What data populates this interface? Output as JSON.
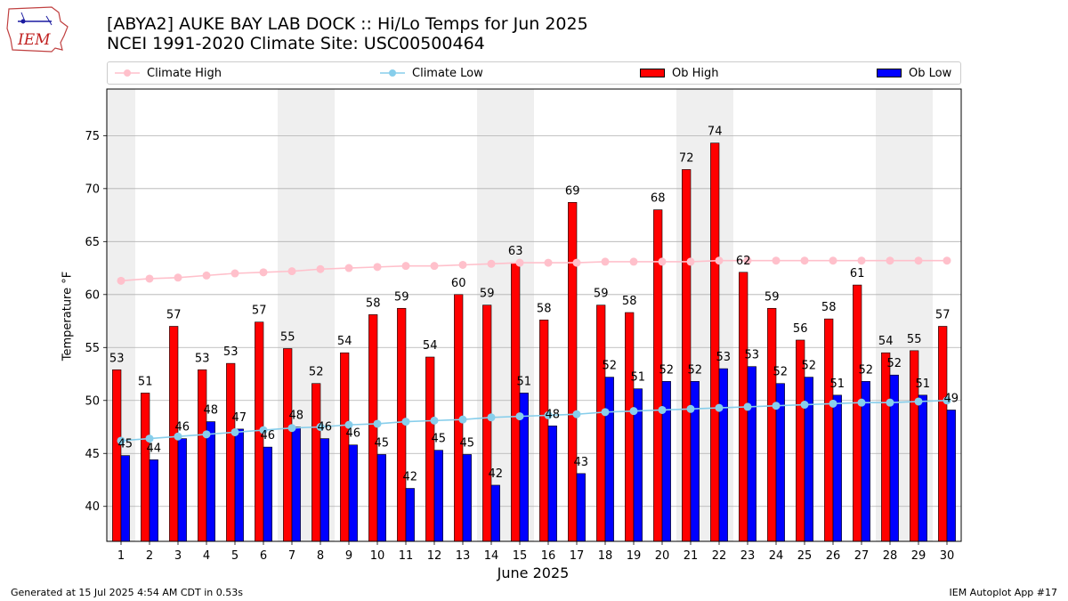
{
  "header": {
    "title_line1": "[ABYA2] AUKE BAY LAB DOCK :: Hi/Lo Temps for Jun 2025",
    "title_line2": "NCEI 1991-2020 Climate Site: USC00500464",
    "logo_text": "IEM"
  },
  "footer": {
    "generated": "Generated at 15 Jul 2025 4:54 AM CDT in 0.53s",
    "app": "IEM Autoplot App #17"
  },
  "colors": {
    "ob_high": "#ff0000",
    "ob_low": "#0000ff",
    "climate_high": "#ffc0cb",
    "climate_low": "#87ceeb",
    "weekend_shade": "#efefef",
    "grid": "#b0b0b0"
  },
  "chart_data": {
    "type": "bar",
    "xlabel": "June 2025",
    "ylabel": "Temperature °F",
    "ylim": [
      36.7,
      79.4
    ],
    "yticks": [
      40,
      45,
      50,
      55,
      60,
      65,
      70,
      75
    ],
    "grid": "horizontal",
    "legend_position": "top",
    "categories": [
      "1",
      "2",
      "3",
      "4",
      "5",
      "6",
      "7",
      "8",
      "9",
      "10",
      "11",
      "12",
      "13",
      "14",
      "15",
      "16",
      "17",
      "18",
      "19",
      "20",
      "21",
      "22",
      "23",
      "24",
      "25",
      "26",
      "27",
      "28",
      "29",
      "30"
    ],
    "shaded_days": [
      1,
      7,
      8,
      14,
      15,
      21,
      22,
      28,
      29
    ],
    "series": [
      {
        "name": "Climate High",
        "kind": "line",
        "values": [
          61.3,
          61.5,
          61.6,
          61.8,
          62.0,
          62.1,
          62.2,
          62.4,
          62.5,
          62.6,
          62.7,
          62.7,
          62.8,
          62.9,
          63.0,
          63.0,
          63.0,
          63.1,
          63.1,
          63.1,
          63.1,
          63.2,
          63.2,
          63.2,
          63.2,
          63.2,
          63.2,
          63.2,
          63.2,
          63.2
        ]
      },
      {
        "name": "Climate Low",
        "kind": "line",
        "values": [
          46.2,
          46.4,
          46.6,
          46.8,
          47.0,
          47.2,
          47.4,
          47.5,
          47.7,
          47.8,
          48.0,
          48.1,
          48.2,
          48.4,
          48.5,
          48.6,
          48.7,
          48.9,
          49.0,
          49.1,
          49.2,
          49.3,
          49.4,
          49.5,
          49.6,
          49.7,
          49.8,
          49.8,
          49.9,
          50.0
        ]
      },
      {
        "name": "Ob High",
        "kind": "bar",
        "values": [
          52.9,
          50.7,
          57.0,
          52.9,
          53.5,
          57.4,
          54.9,
          51.6,
          54.5,
          58.1,
          58.7,
          54.1,
          60.0,
          59.0,
          63.0,
          57.6,
          68.7,
          59.0,
          58.3,
          68.0,
          71.8,
          74.3,
          62.1,
          58.7,
          55.7,
          57.7,
          60.9,
          54.5,
          54.7,
          57.0
        ],
        "labels": [
          "53",
          "51",
          "57",
          "53",
          "53",
          "57",
          "55",
          "52",
          "54",
          "58",
          "59",
          "54",
          "60",
          "59",
          "63",
          "58",
          "69",
          "59",
          "58",
          "68",
          "72",
          "74",
          "62",
          "59",
          "56",
          "58",
          "61",
          "54",
          "55",
          "57"
        ]
      },
      {
        "name": "Ob Low",
        "kind": "bar",
        "values": [
          44.8,
          44.4,
          46.4,
          48.0,
          47.3,
          45.6,
          47.5,
          46.4,
          45.8,
          44.9,
          41.7,
          45.3,
          44.9,
          42.0,
          50.7,
          47.6,
          43.1,
          52.2,
          51.1,
          51.8,
          51.8,
          53.0,
          53.2,
          51.6,
          52.2,
          50.5,
          51.8,
          52.4,
          50.5,
          49.1
        ],
        "labels": [
          "45",
          "44",
          "46",
          "48",
          "47",
          "46",
          "48",
          "46",
          "46",
          "45",
          "42",
          "45",
          "45",
          "42",
          "51",
          "48",
          "43",
          "52",
          "51",
          "52",
          "52",
          "53",
          "53",
          "52",
          "52",
          "51",
          "52",
          "52",
          "51",
          "49"
        ]
      }
    ]
  }
}
